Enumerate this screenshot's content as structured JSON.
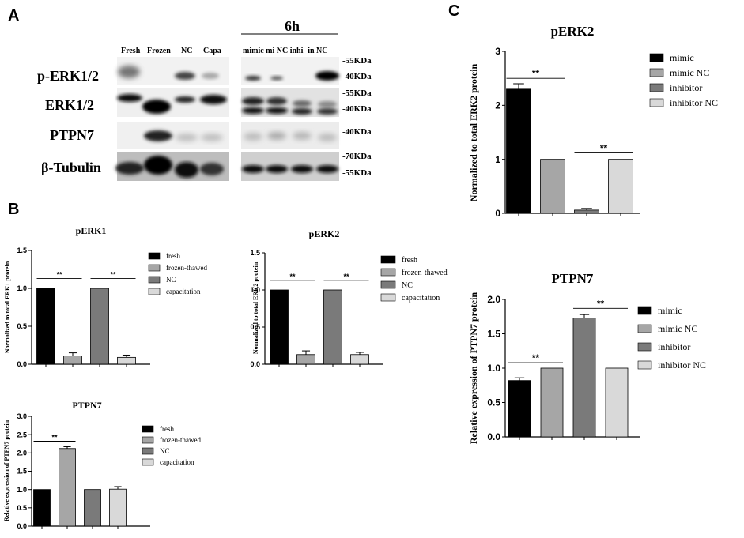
{
  "colors": {
    "fresh": "#000000",
    "frozen": "#a6a6a6",
    "nc": "#7a7a7a",
    "cap": "#d9d9d9",
    "mimic": "#000000",
    "mimic_nc": "#a6a6a6",
    "inhibitor": "#7a7a7a",
    "inhibitor_nc": "#d9d9d9"
  },
  "panel_a": {
    "letter": "A",
    "time_label": "6h",
    "lane_labels_left": [
      "Fresh",
      "Frozen",
      "NC",
      "Capa-"
    ],
    "lane_labels_right": "mimic mi NC inhi- in NC",
    "rows": [
      {
        "label": "p-ERK1/2",
        "markers": [
          "-55KDa",
          "-40KDa"
        ]
      },
      {
        "label": "ERK1/2",
        "markers": [
          "-55KDa",
          "-40KDa"
        ]
      },
      {
        "label": "PTPN7",
        "markers": [
          "-40KDa"
        ]
      },
      {
        "label": "β-Tubulin",
        "markers": [
          "-70KDa",
          "-55KDa"
        ]
      }
    ]
  },
  "panel_b_letter": "B",
  "panel_c_letter": "C",
  "chart_data": [
    {
      "id": "b1",
      "type": "bar",
      "title": "pERK1",
      "ylabel": "Normalized to total ERK1 protein",
      "categories": [
        "fresh",
        "frozen-thawed",
        "NC",
        "capacitation"
      ],
      "values": [
        1.0,
        0.11,
        1.0,
        0.09
      ],
      "errors": [
        0,
        0.04,
        0,
        0.03
      ],
      "ylim": [
        0,
        1.5
      ],
      "yticks": [
        "0.0",
        "0.5",
        "1.0",
        "1.5"
      ],
      "significance": [
        {
          "from": 0,
          "to": 1,
          "label": "**",
          "y": 1.13
        },
        {
          "from": 2,
          "to": 3,
          "label": "**",
          "y": 1.13
        }
      ],
      "legend": [
        "fresh",
        "frozen-thawed",
        "NC",
        "capacitation"
      ]
    },
    {
      "id": "b2",
      "type": "bar",
      "title": "pERK2",
      "ylabel": "Normalized to total ERK2 protein",
      "categories": [
        "fresh",
        "frozen-thawed",
        "NC",
        "capacitation"
      ],
      "values": [
        1.0,
        0.13,
        1.0,
        0.13
      ],
      "errors": [
        0,
        0.05,
        0,
        0.03
      ],
      "ylim": [
        0,
        1.5
      ],
      "yticks": [
        "0.0",
        "0.5",
        "1.0",
        "1.5"
      ],
      "significance": [
        {
          "from": 0,
          "to": 1,
          "label": "**",
          "y": 1.13
        },
        {
          "from": 2,
          "to": 3,
          "label": "**",
          "y": 1.13
        }
      ],
      "legend": [
        "fresh",
        "frozen-thawed",
        "NC",
        "capacitation"
      ]
    },
    {
      "id": "b3",
      "type": "bar",
      "title": "PTPN7",
      "ylabel": "Relative expression of PTPN7 protein",
      "categories": [
        "fresh",
        "frozen-thawed",
        "NC",
        "capacitation"
      ],
      "values": [
        1.0,
        2.12,
        1.0,
        1.01
      ],
      "errors": [
        0,
        0.05,
        0,
        0.07
      ],
      "ylim": [
        0,
        3.0
      ],
      "yticks": [
        "0.0",
        "0.5",
        "1.0",
        "1.5",
        "2.0",
        "2.5",
        "3.0"
      ],
      "significance": [
        {
          "from": 0,
          "to": 1,
          "label": "**",
          "y": 2.32
        }
      ],
      "legend": [
        "fresh",
        "frozen-thawed",
        "NC",
        "capacitation"
      ]
    },
    {
      "id": "c1",
      "type": "bar",
      "title": "pERK2",
      "ylabel": "Normalized to total ERK2 protein",
      "categories": [
        "mimic",
        "mimic NC",
        "inhibitor",
        "inhibitor NC"
      ],
      "values": [
        2.3,
        1.0,
        0.06,
        1.0
      ],
      "errors": [
        0.1,
        0,
        0.03,
        0
      ],
      "ylim": [
        0,
        3
      ],
      "yticks": [
        "0",
        "1",
        "2",
        "3"
      ],
      "significance": [
        {
          "from": 0,
          "to": 1,
          "label": "**",
          "y": 2.5
        },
        {
          "from": 2,
          "to": 3,
          "label": "**",
          "y": 1.12
        }
      ],
      "legend": [
        "mimic",
        "mimic NC",
        "inhibitor",
        "inhibitor NC"
      ]
    },
    {
      "id": "c2",
      "type": "bar",
      "title": "PTPN7",
      "ylabel": "Relative expression of PTPN7 protein",
      "categories": [
        "mimic",
        "mimic NC",
        "inhibitor",
        "inhibitor NC"
      ],
      "values": [
        0.82,
        1.0,
        1.73,
        1.0
      ],
      "errors": [
        0.04,
        0,
        0.05,
        0
      ],
      "ylim": [
        0,
        2.0
      ],
      "yticks": [
        "0.0",
        "0.5",
        "1.0",
        "1.5",
        "2.0"
      ],
      "significance": [
        {
          "from": 0,
          "to": 1,
          "label": "**",
          "y": 1.08
        },
        {
          "from": 2,
          "to": 3,
          "label": "**",
          "y": 1.87
        }
      ],
      "legend": [
        "mimic",
        "mimic NC",
        "inhibitor",
        "inhibitor NC"
      ]
    }
  ]
}
